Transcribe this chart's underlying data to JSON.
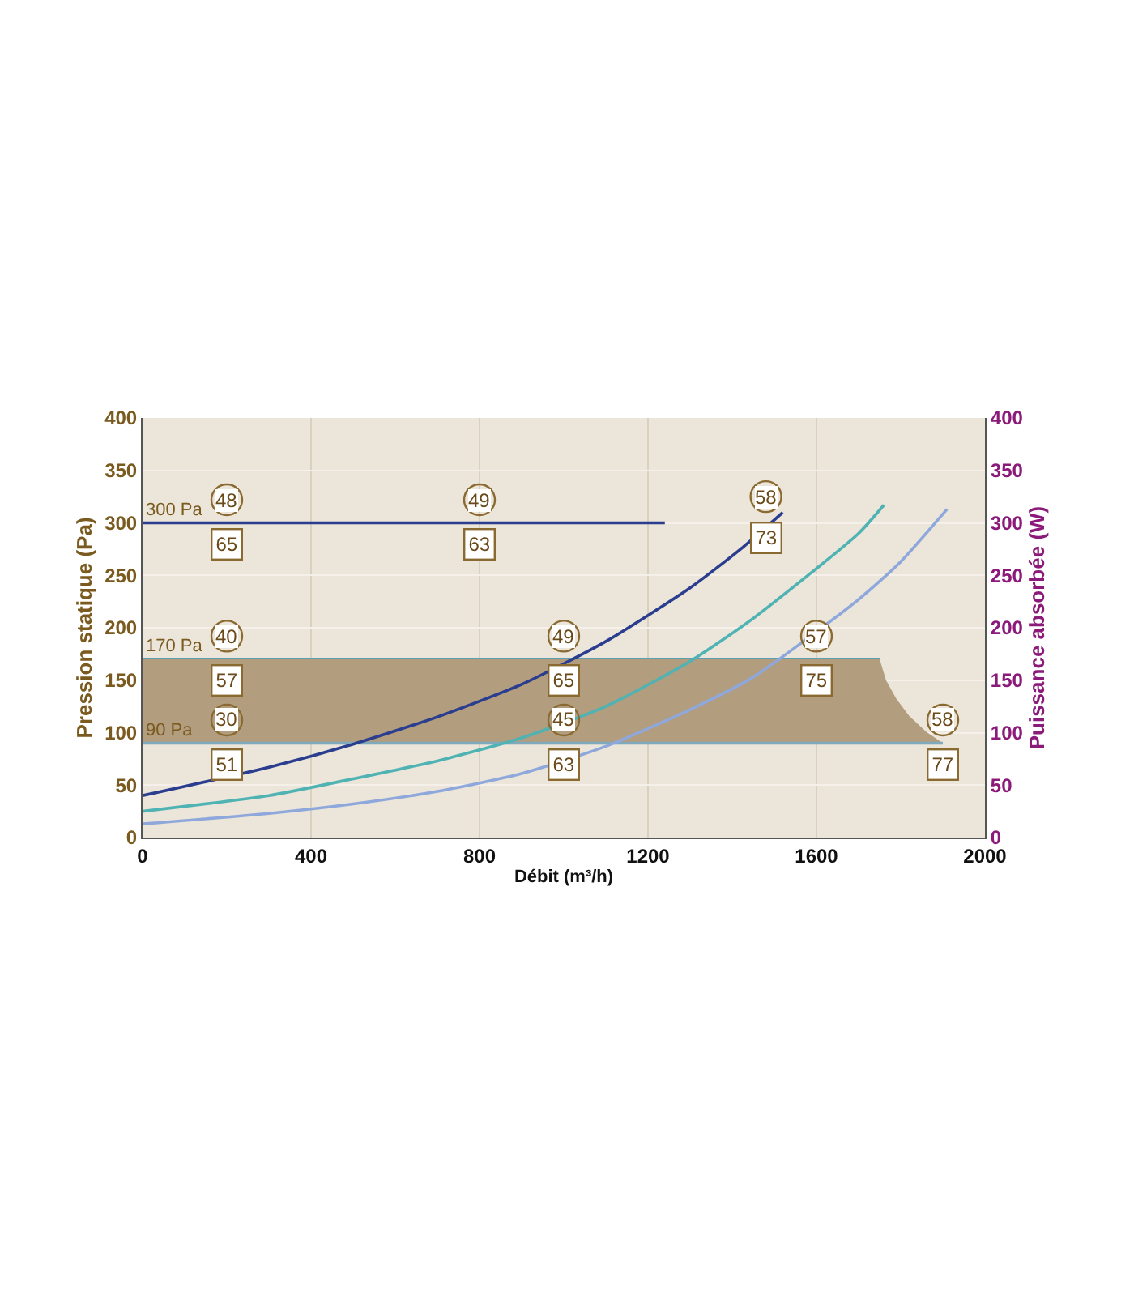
{
  "chart_data": {
    "type": "line",
    "xlabel": "Débit (m³/h)",
    "ylabel": "Pression statique (Pa)",
    "y2label": "Puissance absorbée (W)",
    "xlim": [
      0,
      2000
    ],
    "xticks": [
      0,
      400,
      800,
      1200,
      1600,
      2000
    ],
    "ylim": [
      0,
      400
    ],
    "yticks": [
      0,
      50,
      100,
      150,
      200,
      250,
      300,
      350,
      400
    ],
    "y2lim": [
      0,
      400
    ],
    "y2ticks": [
      0,
      50,
      100,
      150,
      200,
      250,
      300,
      350,
      400
    ],
    "grid": true,
    "legend": false,
    "series": [
      {
        "name": "300 Pa",
        "color": "#2b3d8f",
        "x": [
          0,
          1240
        ],
        "values": [
          300,
          300
        ]
      },
      {
        "name": "170 Pa",
        "color": "#5a9fb3",
        "x": [
          0,
          1750
        ],
        "values": [
          170,
          170
        ]
      },
      {
        "name": "90 Pa",
        "color": "#7fa9bd",
        "x": [
          0,
          1900
        ],
        "values": [
          90,
          90
        ]
      },
      {
        "type": "area",
        "color": "#b29d7e",
        "x": [
          0,
          1750,
          1765,
          1790,
          1820,
          1860,
          1900
        ],
        "values": [
          170,
          170,
          150,
          132,
          116,
          101,
          90
        ]
      },
      {
        "color": "#2b3d8f",
        "x": [
          0,
          300,
          500,
          700,
          900,
          1100,
          1300,
          1420,
          1520
        ],
        "values": [
          40,
          67,
          89,
          115,
          146,
          187,
          238,
          275,
          310
        ]
      },
      {
        "color": "#4fb3b3",
        "x": [
          0,
          300,
          500,
          700,
          900,
          1100,
          1300,
          1450,
          1700,
          1760
        ],
        "values": [
          25,
          40,
          56,
          73,
          95,
          125,
          168,
          209,
          290,
          317
        ]
      },
      {
        "color": "#8fa8dc",
        "x": [
          0,
          300,
          500,
          700,
          900,
          1100,
          1300,
          1450,
          1700,
          1800,
          1910
        ],
        "values": [
          13,
          23,
          32,
          44,
          61,
          87,
          122,
          153,
          227,
          263,
          313
        ]
      }
    ],
    "annotations": [
      {
        "text": "48",
        "x": 200,
        "y": 322
      },
      {
        "text": "65",
        "x": 200,
        "y": 280
      },
      {
        "text": "49",
        "x": 800,
        "y": 322
      },
      {
        "text": "63",
        "x": 800,
        "y": 280
      },
      {
        "text": "58",
        "x": 1480,
        "y": 325
      },
      {
        "text": "73",
        "x": 1480,
        "y": 285
      },
      {
        "text": "40",
        "x": 200,
        "y": 192
      },
      {
        "text": "57",
        "x": 200,
        "y": 150
      },
      {
        "text": "49",
        "x": 1000,
        "y": 192
      },
      {
        "text": "65",
        "x": 1000,
        "y": 150
      },
      {
        "text": "57",
        "x": 1600,
        "y": 192
      },
      {
        "text": "75",
        "x": 1600,
        "y": 150
      },
      {
        "text": "30",
        "x": 200,
        "y": 112
      },
      {
        "text": "51",
        "x": 200,
        "y": 70
      },
      {
        "text": "45",
        "x": 1000,
        "y": 112
      },
      {
        "text": "63",
        "x": 1000,
        "y": 70
      },
      {
        "text": "58",
        "x": 1900,
        "y": 112
      },
      {
        "text": "77",
        "x": 1900,
        "y": 70
      }
    ]
  }
}
